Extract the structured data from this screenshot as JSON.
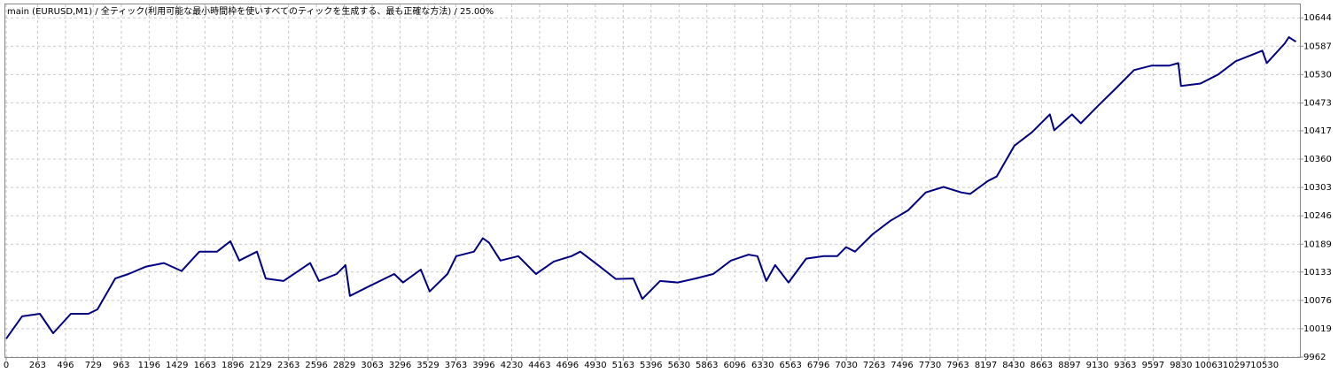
{
  "chart_data": {
    "type": "line",
    "title": "main (EURUSD,M1) / 全ティック(利用可能な最小時間枠を使いすべてのティックを生成する、最も正確な方法) / 25.00%",
    "x": [
      0,
      133,
      282,
      393,
      541,
      689,
      764,
      912,
      1023,
      1171,
      1320,
      1468,
      1616,
      1764,
      1876,
      1950,
      2098,
      2172,
      2320,
      2543,
      2617,
      2765,
      2839,
      2876,
      3024,
      3247,
      3321,
      3469,
      3543,
      3692,
      3766,
      3914,
      3988,
      4040,
      4136,
      4285,
      4433,
      4581,
      4730,
      4804,
      4952,
      5100,
      5248,
      5323,
      5471,
      5619,
      5767,
      5916,
      6064,
      6212,
      6286,
      6360,
      6434,
      6546,
      6694,
      6842,
      6953,
      7028,
      7102,
      7250,
      7398,
      7546,
      7695,
      7843,
      7991,
      8065,
      8214,
      8288,
      8436,
      8584,
      8733,
      8770,
      8918,
      8992,
      9140,
      9289,
      9437,
      9585,
      9733,
      9808,
      9830,
      9993,
      10141,
      10289,
      10437,
      10511,
      10548,
      10696,
      10733,
      10792
    ],
    "series": [
      {
        "color": "#000080",
        "values": [
          9999,
          10044,
          10049,
          10010,
          10049,
          10049,
          10058,
          10120,
          10129,
          10144,
          10151,
          10135,
          10174,
          10174,
          10195,
          10156,
          10174,
          10120,
          10115,
          10151,
          10115,
          10129,
          10147,
          10085,
          10103,
          10129,
          10112,
          10138,
          10094,
          10129,
          10165,
          10174,
          10201,
          10192,
          10156,
          10165,
          10129,
          10154,
          10165,
          10174,
          10147,
          10119,
          10120,
          10079,
          10115,
          10112,
          10120,
          10129,
          10156,
          10168,
          10165,
          10115,
          10147,
          10112,
          10160,
          10165,
          10165,
          10183,
          10174,
          10209,
          10236,
          10257,
          10293,
          10304,
          10293,
          10290,
          10316,
          10325,
          10387,
          10414,
          10450,
          10418,
          10450,
          10432,
          10468,
          10503,
          10539,
          10548,
          10548,
          10553,
          10507,
          10512,
          10530,
          10557,
          10571,
          10578,
          10553,
          10592,
          10605,
          10596
        ]
      }
    ],
    "xlim": [
      0,
      10825
    ],
    "xticks": [
      0,
      263,
      496,
      729,
      963,
      1196,
      1429,
      1663,
      1896,
      2129,
      2363,
      2596,
      2829,
      3063,
      3296,
      3529,
      3763,
      3996,
      4230,
      4463,
      4696,
      4930,
      5163,
      5396,
      5630,
      5863,
      6096,
      6330,
      6563,
      6796,
      7030,
      7263,
      7496,
      7730,
      7963,
      8197,
      8430,
      8663,
      8897,
      9130,
      9363,
      9597,
      9830,
      10063,
      10297,
      10530
    ],
    "ylim": [
      9962,
      10671
    ],
    "yticks": [
      9962,
      10019,
      10076,
      10133,
      10189,
      10246,
      10303,
      10360,
      10417,
      10473,
      10530,
      10587,
      10644
    ],
    "grid": true
  }
}
